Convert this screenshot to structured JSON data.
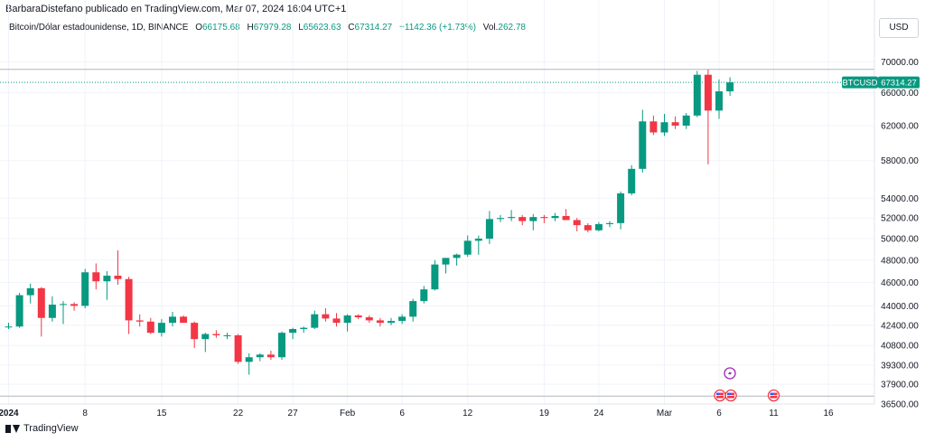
{
  "header": {
    "published": "BarbaraDistefano publicado en TradingView.com, Mar 07, 2024 16:04 UTC+1",
    "symbol_desc": "Bitcoin/Dólar estadounidense, 1D, BINANCE",
    "o_label": "O",
    "o_value": "66175.68",
    "h_label": "H",
    "h_value": "67979.28",
    "l_label": "L",
    "l_value": "65623.63",
    "c_label": "C",
    "c_value": "67314.27",
    "change": "+1142.36 (+1.73%)",
    "vol_label": "Vol.",
    "vol_value": "262.78"
  },
  "currency_button": "USD",
  "price_tag": {
    "symbol": "BTCUSD",
    "price": "67314.27"
  },
  "footer": {
    "brand": "TradingView"
  },
  "colors": {
    "up": "#089981",
    "down": "#f23645",
    "accent": "#089981",
    "grid": "#f0f3fa"
  },
  "chart_data": {
    "type": "candlestick",
    "scale": "log",
    "ylim": [
      36500,
      72500
    ],
    "y_ticks": [
      {
        "value": 70000,
        "label": "70000.00"
      },
      {
        "value": 66000,
        "label": "66000.00"
      },
      {
        "value": 62000,
        "label": "62000.00"
      },
      {
        "value": 58000,
        "label": "58000.00"
      },
      {
        "value": 54000,
        "label": "54000.00"
      },
      {
        "value": 52000,
        "label": "52000.00"
      },
      {
        "value": 50000,
        "label": "50000.00"
      },
      {
        "value": 48000,
        "label": "48000.00"
      },
      {
        "value": 46000,
        "label": "46000.00"
      },
      {
        "value": 44000,
        "label": "44000.00"
      },
      {
        "value": 42400,
        "label": "42400.00"
      },
      {
        "value": 40800,
        "label": "40800.00"
      },
      {
        "value": 39300,
        "label": "39300.00"
      },
      {
        "value": 37900,
        "label": "37900.00"
      },
      {
        "value": 36500,
        "label": "36500.00"
      }
    ],
    "x_ticks": [
      {
        "index": 0,
        "label": "2024"
      },
      {
        "index": 7,
        "label": "8"
      },
      {
        "index": 14,
        "label": "15"
      },
      {
        "index": 21,
        "label": "22"
      },
      {
        "index": 26,
        "label": "27"
      },
      {
        "index": 31,
        "label": "Feb"
      },
      {
        "index": 36,
        "label": "6"
      },
      {
        "index": 42,
        "label": "12"
      },
      {
        "index": 49,
        "label": "19"
      },
      {
        "index": 54,
        "label": "24"
      },
      {
        "index": 60,
        "label": "Mar"
      },
      {
        "index": 65,
        "label": "6"
      },
      {
        "index": 70,
        "label": "11"
      },
      {
        "index": 75,
        "label": "16"
      }
    ],
    "horizontal_levels": [
      69000,
      37050
    ],
    "candles": [
      {
        "o": 42300,
        "h": 42600,
        "l": 42100,
        "c": 42300
      },
      {
        "o": 42300,
        "h": 45100,
        "l": 42200,
        "c": 44900
      },
      {
        "o": 44900,
        "h": 45900,
        "l": 44200,
        "c": 45500
      },
      {
        "o": 45500,
        "h": 45600,
        "l": 41500,
        "c": 43000
      },
      {
        "o": 43000,
        "h": 44800,
        "l": 42700,
        "c": 44100
      },
      {
        "o": 44100,
        "h": 44400,
        "l": 42500,
        "c": 44150
      },
      {
        "o": 44150,
        "h": 44300,
        "l": 43600,
        "c": 44000
      },
      {
        "o": 44000,
        "h": 47200,
        "l": 43800,
        "c": 46900
      },
      {
        "o": 46900,
        "h": 47700,
        "l": 45400,
        "c": 46100
      },
      {
        "o": 46100,
        "h": 47000,
        "l": 44500,
        "c": 46600
      },
      {
        "o": 46600,
        "h": 48900,
        "l": 45800,
        "c": 46300
      },
      {
        "o": 46300,
        "h": 46500,
        "l": 41700,
        "c": 42800
      },
      {
        "o": 42800,
        "h": 43300,
        "l": 42300,
        "c": 42700
      },
      {
        "o": 42700,
        "h": 43000,
        "l": 41700,
        "c": 41800
      },
      {
        "o": 41800,
        "h": 42900,
        "l": 41500,
        "c": 42600
      },
      {
        "o": 42600,
        "h": 43500,
        "l": 42300,
        "c": 43100
      },
      {
        "o": 43100,
        "h": 43200,
        "l": 42600,
        "c": 42600
      },
      {
        "o": 42600,
        "h": 42700,
        "l": 40600,
        "c": 41300
      },
      {
        "o": 41300,
        "h": 41800,
        "l": 40300,
        "c": 41700
      },
      {
        "o": 41700,
        "h": 42000,
        "l": 41400,
        "c": 41600
      },
      {
        "o": 41600,
        "h": 41800,
        "l": 41300,
        "c": 41600
      },
      {
        "o": 41600,
        "h": 41700,
        "l": 39400,
        "c": 39550
      },
      {
        "o": 39550,
        "h": 40200,
        "l": 38600,
        "c": 39900
      },
      {
        "o": 39900,
        "h": 40200,
        "l": 39600,
        "c": 40100
      },
      {
        "o": 40100,
        "h": 40400,
        "l": 39700,
        "c": 39900
      },
      {
        "o": 39900,
        "h": 41900,
        "l": 39700,
        "c": 41800
      },
      {
        "o": 41800,
        "h": 42200,
        "l": 41300,
        "c": 42100
      },
      {
        "o": 42100,
        "h": 42300,
        "l": 41800,
        "c": 42200
      },
      {
        "o": 42200,
        "h": 43600,
        "l": 42100,
        "c": 43300
      },
      {
        "o": 43300,
        "h": 43800,
        "l": 42700,
        "c": 42950
      },
      {
        "o": 42950,
        "h": 43400,
        "l": 42300,
        "c": 42600
      },
      {
        "o": 42600,
        "h": 43300,
        "l": 41900,
        "c": 43200
      },
      {
        "o": 43200,
        "h": 43300,
        "l": 42900,
        "c": 43050
      },
      {
        "o": 43050,
        "h": 43200,
        "l": 42600,
        "c": 42800
      },
      {
        "o": 42800,
        "h": 43000,
        "l": 42300,
        "c": 42600
      },
      {
        "o": 42600,
        "h": 43000,
        "l": 42400,
        "c": 42750
      },
      {
        "o": 42750,
        "h": 43300,
        "l": 42500,
        "c": 43100
      },
      {
        "o": 43100,
        "h": 44600,
        "l": 42700,
        "c": 44400
      },
      {
        "o": 44400,
        "h": 45700,
        "l": 44200,
        "c": 45400
      },
      {
        "o": 45400,
        "h": 48000,
        "l": 45300,
        "c": 47600
      },
      {
        "o": 47600,
        "h": 48200,
        "l": 46800,
        "c": 48200
      },
      {
        "o": 48200,
        "h": 48600,
        "l": 47500,
        "c": 48500
      },
      {
        "o": 48500,
        "h": 50300,
        "l": 48300,
        "c": 49800
      },
      {
        "o": 49800,
        "h": 50300,
        "l": 48500,
        "c": 50000
      },
      {
        "o": 50000,
        "h": 52700,
        "l": 49500,
        "c": 51900
      },
      {
        "o": 51900,
        "h": 52300,
        "l": 51600,
        "c": 52000
      },
      {
        "o": 52000,
        "h": 52800,
        "l": 51700,
        "c": 52100
      },
      {
        "o": 52100,
        "h": 52300,
        "l": 51300,
        "c": 51700
      },
      {
        "o": 51700,
        "h": 52400,
        "l": 50800,
        "c": 52100
      },
      {
        "o": 52100,
        "h": 52300,
        "l": 51500,
        "c": 52000
      },
      {
        "o": 52000,
        "h": 52500,
        "l": 51700,
        "c": 52200
      },
      {
        "o": 52200,
        "h": 52900,
        "l": 51900,
        "c": 51800
      },
      {
        "o": 51800,
        "h": 52000,
        "l": 50700,
        "c": 51300
      },
      {
        "o": 51300,
        "h": 51500,
        "l": 50600,
        "c": 50800
      },
      {
        "o": 50800,
        "h": 51600,
        "l": 50700,
        "c": 51400
      },
      {
        "o": 51400,
        "h": 51700,
        "l": 51100,
        "c": 51500
      },
      {
        "o": 51500,
        "h": 54700,
        "l": 50900,
        "c": 54500
      },
      {
        "o": 54500,
        "h": 57500,
        "l": 54300,
        "c": 57100
      },
      {
        "o": 57100,
        "h": 63900,
        "l": 56700,
        "c": 62500
      },
      {
        "o": 62500,
        "h": 63200,
        "l": 60900,
        "c": 61200
      },
      {
        "o": 61200,
        "h": 63400,
        "l": 60800,
        "c": 62400
      },
      {
        "o": 62400,
        "h": 63100,
        "l": 61600,
        "c": 62000
      },
      {
        "o": 62000,
        "h": 63500,
        "l": 61600,
        "c": 63200
      },
      {
        "o": 63200,
        "h": 68800,
        "l": 63000,
        "c": 68300
      },
      {
        "o": 68300,
        "h": 69000,
        "l": 57600,
        "c": 63800
      },
      {
        "o": 63800,
        "h": 67700,
        "l": 62800,
        "c": 66175
      },
      {
        "o": 66175,
        "h": 67979,
        "l": 65624,
        "c": 67314
      }
    ],
    "markers": [
      {
        "index": 65,
        "y": 38700,
        "type": "lightning-icon"
      },
      {
        "index": 65,
        "y": 37100,
        "type": "flag-icon"
      },
      {
        "index": 66,
        "y": 37100,
        "type": "flag-icon"
      },
      {
        "index": 70,
        "y": 37100,
        "type": "flag-icon"
      }
    ]
  }
}
